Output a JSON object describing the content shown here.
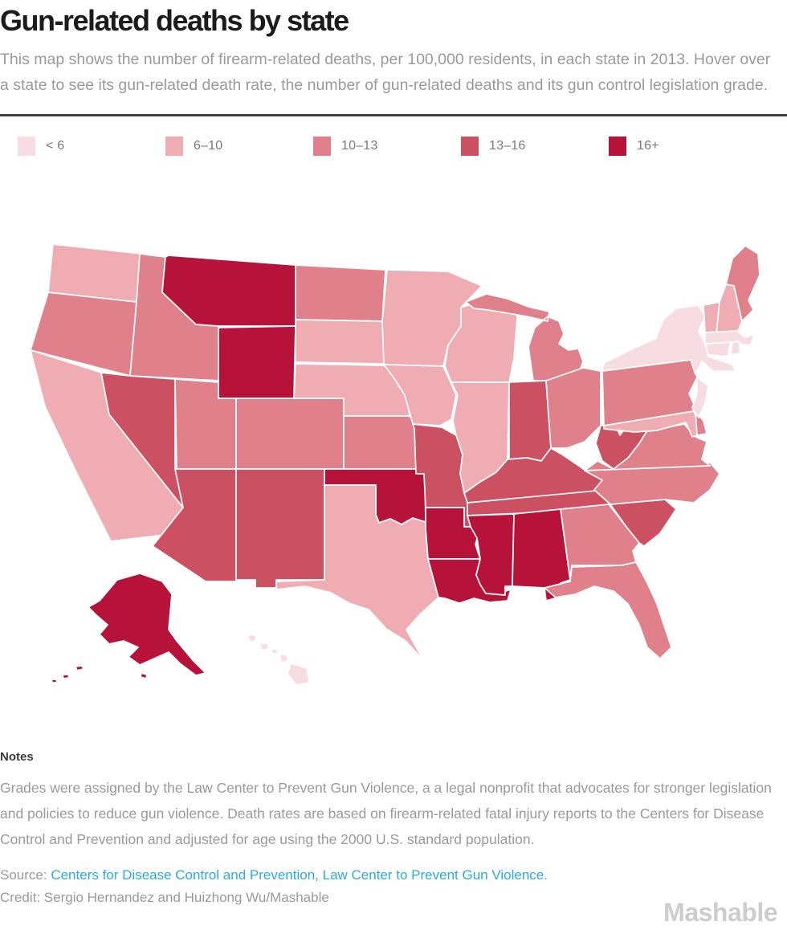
{
  "header": {
    "title": "Gun-related deaths by state",
    "subtitle": "This map shows the number of firearm-related deaths, per 100,000 residents, in each state in 2013. Hover over a state to see its gun-related death rate, the number of gun-related deaths and its gun control legislation grade."
  },
  "legend": {
    "buckets": [
      {
        "label": "< 6",
        "color": "#f7dce1"
      },
      {
        "label": "6–10",
        "color": "#efacb3"
      },
      {
        "label": "10–13",
        "color": "#e0808b"
      },
      {
        "label": "13–16",
        "color": "#cb5061"
      },
      {
        "label": "16+",
        "color": "#b6123a"
      }
    ]
  },
  "chart_data": {
    "type": "heatmap",
    "subtype": "choropleth-us-states",
    "title": "Gun-related deaths by state",
    "unit": "firearm-related deaths per 100,000 residents, 2013",
    "categories": [
      "< 6",
      "6–10",
      "10–13",
      "13–16",
      "16+"
    ],
    "legend_position": "top",
    "states": [
      {
        "id": "WA",
        "name": "Washington",
        "range": "6–10"
      },
      {
        "id": "OR",
        "name": "Oregon",
        "range": "10–13"
      },
      {
        "id": "CA",
        "name": "California",
        "range": "6–10"
      },
      {
        "id": "NV",
        "name": "Nevada",
        "range": "13–16"
      },
      {
        "id": "ID",
        "name": "Idaho",
        "range": "10–13"
      },
      {
        "id": "MT",
        "name": "Montana",
        "range": "16+"
      },
      {
        "id": "WY",
        "name": "Wyoming",
        "range": "16+"
      },
      {
        "id": "UT",
        "name": "Utah",
        "range": "10–13"
      },
      {
        "id": "CO",
        "name": "Colorado",
        "range": "10–13"
      },
      {
        "id": "AZ",
        "name": "Arizona",
        "range": "13–16"
      },
      {
        "id": "NM",
        "name": "New Mexico",
        "range": "13–16"
      },
      {
        "id": "ND",
        "name": "North Dakota",
        "range": "10–13"
      },
      {
        "id": "SD",
        "name": "South Dakota",
        "range": "6–10"
      },
      {
        "id": "NE",
        "name": "Nebraska",
        "range": "6–10"
      },
      {
        "id": "KS",
        "name": "Kansas",
        "range": "10–13"
      },
      {
        "id": "OK",
        "name": "Oklahoma",
        "range": "16+"
      },
      {
        "id": "TX",
        "name": "Texas",
        "range": "6–10"
      },
      {
        "id": "MN",
        "name": "Minnesota",
        "range": "6–10"
      },
      {
        "id": "IA",
        "name": "Iowa",
        "range": "6–10"
      },
      {
        "id": "MO",
        "name": "Missouri",
        "range": "13–16"
      },
      {
        "id": "AR",
        "name": "Arkansas",
        "range": "16+"
      },
      {
        "id": "LA",
        "name": "Louisiana",
        "range": "16+"
      },
      {
        "id": "WI",
        "name": "Wisconsin",
        "range": "6–10"
      },
      {
        "id": "IL",
        "name": "Illinois",
        "range": "6–10"
      },
      {
        "id": "MI",
        "name": "Michigan",
        "range": "10–13"
      },
      {
        "id": "IN",
        "name": "Indiana",
        "range": "13–16"
      },
      {
        "id": "OH",
        "name": "Ohio",
        "range": "10–13"
      },
      {
        "id": "KY",
        "name": "Kentucky",
        "range": "13–16"
      },
      {
        "id": "TN",
        "name": "Tennessee",
        "range": "13–16"
      },
      {
        "id": "MS",
        "name": "Mississippi",
        "range": "16+"
      },
      {
        "id": "AL",
        "name": "Alabama",
        "range": "16+"
      },
      {
        "id": "GA",
        "name": "Georgia",
        "range": "10–13"
      },
      {
        "id": "FL",
        "name": "Florida",
        "range": "10–13"
      },
      {
        "id": "SC",
        "name": "South Carolina",
        "range": "13–16"
      },
      {
        "id": "NC",
        "name": "North Carolina",
        "range": "10–13"
      },
      {
        "id": "VA",
        "name": "Virginia",
        "range": "10–13"
      },
      {
        "id": "WV",
        "name": "West Virginia",
        "range": "13–16"
      },
      {
        "id": "PA",
        "name": "Pennsylvania",
        "range": "10–13"
      },
      {
        "id": "MD",
        "name": "Maryland",
        "range": "6–10"
      },
      {
        "id": "DE",
        "name": "Delaware",
        "range": "10–13"
      },
      {
        "id": "NJ",
        "name": "New Jersey",
        "range": "< 6"
      },
      {
        "id": "NY",
        "name": "New York",
        "range": "< 6"
      },
      {
        "id": "VT",
        "name": "Vermont",
        "range": "6–10"
      },
      {
        "id": "NH",
        "name": "New Hampshire",
        "range": "6–10"
      },
      {
        "id": "ME",
        "name": "Maine",
        "range": "10–13"
      },
      {
        "id": "MA",
        "name": "Massachusetts",
        "range": "< 6"
      },
      {
        "id": "CT",
        "name": "Connecticut",
        "range": "< 6"
      },
      {
        "id": "RI",
        "name": "Rhode Island",
        "range": "< 6"
      },
      {
        "id": "AK",
        "name": "Alaska",
        "range": "16+"
      },
      {
        "id": "HI",
        "name": "Hawaii",
        "range": "< 6"
      }
    ]
  },
  "notes": {
    "heading": "Notes",
    "body": "Grades were assigned by the Law Center to Prevent Gun Violence, a a legal nonprofit that advocates for stronger legislation and policies to reduce gun violence. Death rates are based on firearm-related fatal injury reports to the Centers for Disease Control and Prevention and adjusted for age using the 2000 U.S. standard population."
  },
  "footer": {
    "source_label": "Source:",
    "sources": [
      {
        "text": "Centers for Disease Control and Prevention,"
      },
      {
        "text": "Law Center to Prevent Gun Violence."
      }
    ],
    "link_color": "#29abe2",
    "credit": "Credit: Sergio Hernandez and Huizhong Wu/Mashable",
    "brand": "Mashable"
  }
}
